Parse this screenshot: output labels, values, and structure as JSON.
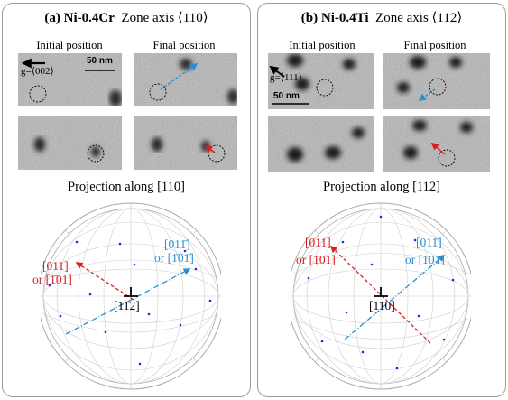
{
  "panels": [
    {
      "label": "(a)",
      "material": "Ni-0.4Cr",
      "zone_axis_text": "Zone axis ⟨110⟩",
      "col_initial": "Initial position",
      "col_final": "Final position",
      "g_vector": "g=⟨002⟩",
      "scale_bar": "50 nm",
      "projection_title": "Projection along [110]",
      "center_label": "[11̄2]",
      "red_label_1": "[011]",
      "red_label_2": "or [1̄01]",
      "blue_label_1": "[011̄]",
      "blue_label_2": "or [1̄01̄]"
    },
    {
      "label": "(b)",
      "material": "Ni-0.4Ti",
      "zone_axis_text": "Zone axis ⟨112⟩",
      "col_initial": "Initial position",
      "col_final": "Final position",
      "g_vector": "g=⟨111⟩",
      "scale_bar": "50 nm",
      "projection_title": "Projection along [112]",
      "center_label": "[11̄0]",
      "red_label_1": "[011]",
      "red_label_2": "or [1̄01]",
      "blue_label_1": "[011̄]",
      "blue_label_2": "or [1̄01̄]"
    }
  ],
  "colors": {
    "red_arrow": "#d62020",
    "blue_arrow": "#2a8fd0",
    "panel_border": "#9a9a9a"
  }
}
